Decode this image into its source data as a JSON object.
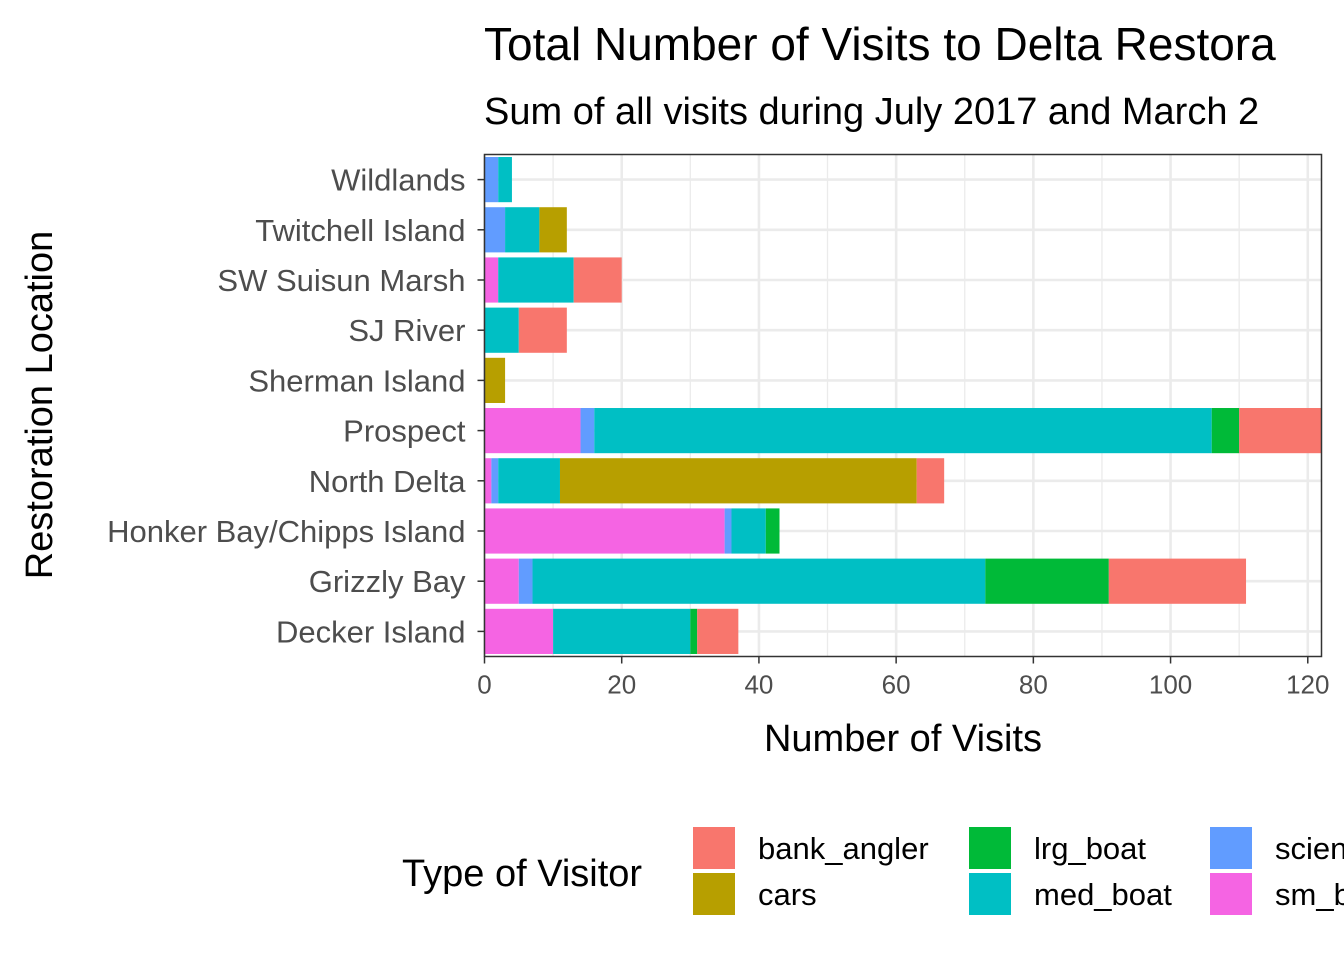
{
  "chart_data": {
    "type": "bar",
    "orientation": "horizontal",
    "stacked": true,
    "title": "Total Number of Visits to Delta Restora",
    "subtitle": "Sum of all visits during July 2017 and March 2",
    "xlabel": "Number of Visits",
    "ylabel": "Restoration Location",
    "xlim": [
      0,
      122
    ],
    "x_ticks": [
      0,
      20,
      40,
      60,
      80,
      100,
      120
    ],
    "grid": true,
    "legend_position": "bottom",
    "legend_title": "Type of Visitor",
    "categories": [
      "Decker Island",
      "Grizzly Bay",
      "Honker Bay/Chipps Island",
      "North Delta",
      "Prospect",
      "Sherman Island",
      "SJ River",
      "SW Suisun Marsh",
      "Twitchell Island",
      "Wildlands"
    ],
    "stack_order": [
      "sm_boat",
      "scientist",
      "med_boat",
      "lrg_boat",
      "cars",
      "bank_angler"
    ],
    "legend_order": [
      "bank_angler",
      "cars",
      "lrg_boat",
      "med_boat",
      "scientist",
      "sm_boat"
    ],
    "legend_labels": {
      "bank_angler": "bank_angler",
      "cars": "cars",
      "lrg_boat": "lrg_boat",
      "med_boat": "med_boat",
      "scientist": "scien",
      "sm_boat": "sm_b"
    },
    "series": [
      {
        "name": "bank_angler",
        "color": "#F8766D",
        "values": [
          6,
          20,
          0,
          4,
          12,
          0,
          7,
          7,
          0,
          0
        ]
      },
      {
        "name": "cars",
        "color": "#B79F00",
        "values": [
          0,
          0,
          0,
          52,
          0,
          3,
          0,
          0,
          4,
          0
        ]
      },
      {
        "name": "lrg_boat",
        "color": "#00BA38",
        "values": [
          1,
          18,
          2,
          0,
          4,
          0,
          0,
          0,
          0,
          0
        ]
      },
      {
        "name": "med_boat",
        "color": "#00BFC4",
        "values": [
          20,
          66,
          5,
          9,
          90,
          0,
          5,
          11,
          5,
          2
        ]
      },
      {
        "name": "scientist",
        "color": "#619CFF",
        "values": [
          0,
          2,
          1,
          1,
          2,
          0,
          0,
          0,
          3,
          2
        ]
      },
      {
        "name": "sm_boat",
        "color": "#F564E3",
        "values": [
          10,
          5,
          35,
          1,
          14,
          0,
          0,
          2,
          0,
          0
        ]
      }
    ]
  }
}
